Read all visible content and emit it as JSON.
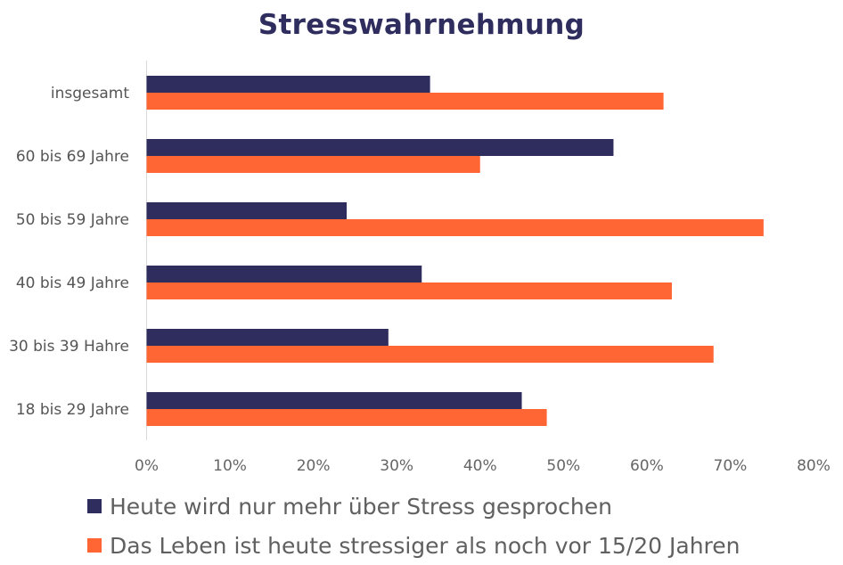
{
  "chart_data": {
    "type": "bar",
    "orientation": "horizontal",
    "title": "Stresswahrnehmung",
    "categories": [
      "insgesamt",
      "60 bis 69 Jahre",
      "50 bis 59 Jahre",
      "40 bis 49 Jahre",
      "30 bis 39 Hahre",
      "18 bis 29 Jahre"
    ],
    "series": [
      {
        "name": "Heute wird nur mehr über Stress gesprochen",
        "color": "#2e2d5e",
        "values": [
          34,
          56,
          24,
          33,
          29,
          45
        ]
      },
      {
        "name": "Das Leben ist heute stressiger als noch vor 15/20 Jahren",
        "color": "#ff6633",
        "values": [
          62,
          40,
          74,
          63,
          68,
          48
        ]
      }
    ],
    "xlim": [
      0,
      80
    ],
    "xticks": [
      0,
      10,
      20,
      30,
      40,
      50,
      60,
      70,
      80
    ],
    "xtick_labels": [
      "0%",
      "10%",
      "20%",
      "30%",
      "40%",
      "50%",
      "60%",
      "70%",
      "80%"
    ],
    "unit": "%",
    "grid": false,
    "legend_position": "bottom"
  }
}
